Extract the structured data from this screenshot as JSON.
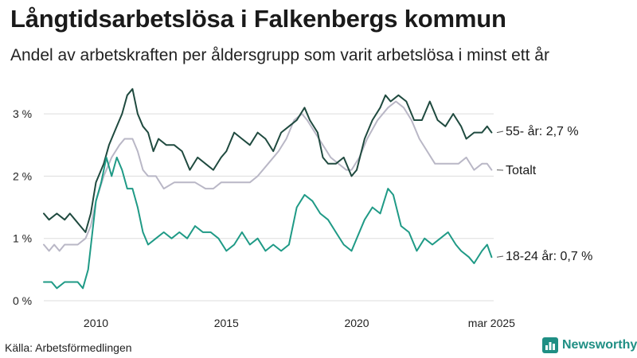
{
  "header": {
    "title": "Långtidsarbetslösa i Falkenbergs kommun",
    "subtitle": "Andel av arbetskraften per åldersgrupp som varit arbetslösa i minst ett år"
  },
  "footer": {
    "source": "Källa: Arbetsförmedlingen",
    "logo_text": "Newsworthy"
  },
  "colors": {
    "series_55": "#1f4a3f",
    "series_total": "#b9b7c6",
    "series_18_24": "#1f9a86",
    "grid": "#dddddd",
    "logo": "#1f8f84"
  },
  "chart_data": {
    "type": "line",
    "title": "",
    "xlabel": "",
    "ylabel": "",
    "x_start": "2008-01",
    "x_end": "2025-03",
    "xlim": [
      2008.0,
      2025.25
    ],
    "ylim": [
      0,
      3.5
    ],
    "grid": "horizontal",
    "yticks": [
      {
        "value": 0,
        "label": "0 %"
      },
      {
        "value": 1,
        "label": "1 %"
      },
      {
        "value": 2,
        "label": "2 %"
      },
      {
        "value": 3,
        "label": "3 %"
      }
    ],
    "xticks": [
      {
        "value": 2010.0,
        "label": "2010"
      },
      {
        "value": 2015.0,
        "label": "2015"
      },
      {
        "value": 2020.0,
        "label": "2020"
      },
      {
        "value": 2025.17,
        "label": "mar 2025"
      }
    ],
    "series": [
      {
        "key": "series_total",
        "label": "Totalt",
        "points": [
          [
            2008.0,
            0.9
          ],
          [
            2008.2,
            0.8
          ],
          [
            2008.4,
            0.9
          ],
          [
            2008.6,
            0.8
          ],
          [
            2008.8,
            0.9
          ],
          [
            2009.0,
            0.9
          ],
          [
            2009.3,
            0.9
          ],
          [
            2009.6,
            1.0
          ],
          [
            2009.8,
            1.2
          ],
          [
            2010.0,
            1.6
          ],
          [
            2010.3,
            2.0
          ],
          [
            2010.6,
            2.3
          ],
          [
            2010.9,
            2.5
          ],
          [
            2011.1,
            2.6
          ],
          [
            2011.4,
            2.6
          ],
          [
            2011.6,
            2.4
          ],
          [
            2011.8,
            2.1
          ],
          [
            2012.0,
            2.0
          ],
          [
            2012.3,
            2.0
          ],
          [
            2012.6,
            1.8
          ],
          [
            2013.0,
            1.9
          ],
          [
            2013.4,
            1.9
          ],
          [
            2013.8,
            1.9
          ],
          [
            2014.2,
            1.8
          ],
          [
            2014.5,
            1.8
          ],
          [
            2014.8,
            1.9
          ],
          [
            2015.1,
            1.9
          ],
          [
            2015.5,
            1.9
          ],
          [
            2015.9,
            1.9
          ],
          [
            2016.2,
            2.0
          ],
          [
            2016.6,
            2.2
          ],
          [
            2017.0,
            2.4
          ],
          [
            2017.3,
            2.6
          ],
          [
            2017.6,
            2.9
          ],
          [
            2017.9,
            3.0
          ],
          [
            2018.1,
            2.9
          ],
          [
            2018.4,
            2.7
          ],
          [
            2018.7,
            2.5
          ],
          [
            2019.0,
            2.3
          ],
          [
            2019.3,
            2.2
          ],
          [
            2019.6,
            2.1
          ],
          [
            2019.8,
            2.1
          ],
          [
            2020.1,
            2.3
          ],
          [
            2020.4,
            2.6
          ],
          [
            2020.8,
            2.9
          ],
          [
            2021.2,
            3.1
          ],
          [
            2021.5,
            3.2
          ],
          [
            2021.8,
            3.1
          ],
          [
            2022.1,
            2.9
          ],
          [
            2022.4,
            2.6
          ],
          [
            2022.7,
            2.4
          ],
          [
            2023.0,
            2.2
          ],
          [
            2023.3,
            2.2
          ],
          [
            2023.6,
            2.2
          ],
          [
            2023.9,
            2.2
          ],
          [
            2024.2,
            2.3
          ],
          [
            2024.5,
            2.1
          ],
          [
            2024.8,
            2.2
          ],
          [
            2025.0,
            2.2
          ],
          [
            2025.17,
            2.1
          ]
        ]
      },
      {
        "key": "series_55",
        "label": "55- år: 2,7 %",
        "points": [
          [
            2008.0,
            1.4
          ],
          [
            2008.2,
            1.3
          ],
          [
            2008.5,
            1.4
          ],
          [
            2008.8,
            1.3
          ],
          [
            2009.0,
            1.4
          ],
          [
            2009.2,
            1.3
          ],
          [
            2009.4,
            1.2
          ],
          [
            2009.6,
            1.1
          ],
          [
            2009.8,
            1.4
          ],
          [
            2010.0,
            1.9
          ],
          [
            2010.3,
            2.2
          ],
          [
            2010.5,
            2.5
          ],
          [
            2010.8,
            2.8
          ],
          [
            2011.0,
            3.0
          ],
          [
            2011.2,
            3.3
          ],
          [
            2011.4,
            3.4
          ],
          [
            2011.6,
            3.0
          ],
          [
            2011.8,
            2.8
          ],
          [
            2012.0,
            2.7
          ],
          [
            2012.2,
            2.4
          ],
          [
            2012.4,
            2.6
          ],
          [
            2012.7,
            2.5
          ],
          [
            2013.0,
            2.5
          ],
          [
            2013.3,
            2.4
          ],
          [
            2013.6,
            2.1
          ],
          [
            2013.9,
            2.3
          ],
          [
            2014.2,
            2.2
          ],
          [
            2014.5,
            2.1
          ],
          [
            2014.8,
            2.3
          ],
          [
            2015.0,
            2.4
          ],
          [
            2015.3,
            2.7
          ],
          [
            2015.6,
            2.6
          ],
          [
            2015.9,
            2.5
          ],
          [
            2016.2,
            2.7
          ],
          [
            2016.5,
            2.6
          ],
          [
            2016.8,
            2.4
          ],
          [
            2017.1,
            2.7
          ],
          [
            2017.4,
            2.8
          ],
          [
            2017.7,
            2.9
          ],
          [
            2018.0,
            3.1
          ],
          [
            2018.2,
            2.9
          ],
          [
            2018.5,
            2.7
          ],
          [
            2018.7,
            2.3
          ],
          [
            2018.9,
            2.2
          ],
          [
            2019.2,
            2.2
          ],
          [
            2019.5,
            2.3
          ],
          [
            2019.8,
            2.0
          ],
          [
            2020.0,
            2.1
          ],
          [
            2020.3,
            2.6
          ],
          [
            2020.6,
            2.9
          ],
          [
            2020.9,
            3.1
          ],
          [
            2021.1,
            3.3
          ],
          [
            2021.3,
            3.2
          ],
          [
            2021.6,
            3.3
          ],
          [
            2021.9,
            3.2
          ],
          [
            2022.2,
            2.9
          ],
          [
            2022.5,
            2.9
          ],
          [
            2022.8,
            3.2
          ],
          [
            2023.1,
            2.9
          ],
          [
            2023.4,
            2.8
          ],
          [
            2023.7,
            3.0
          ],
          [
            2024.0,
            2.8
          ],
          [
            2024.2,
            2.6
          ],
          [
            2024.5,
            2.7
          ],
          [
            2024.8,
            2.7
          ],
          [
            2025.0,
            2.8
          ],
          [
            2025.17,
            2.7
          ]
        ]
      },
      {
        "key": "series_18_24",
        "label": "18-24 år: 0,7 %",
        "points": [
          [
            2008.0,
            0.3
          ],
          [
            2008.3,
            0.3
          ],
          [
            2008.5,
            0.2
          ],
          [
            2008.8,
            0.3
          ],
          [
            2009.0,
            0.3
          ],
          [
            2009.3,
            0.3
          ],
          [
            2009.5,
            0.2
          ],
          [
            2009.7,
            0.5
          ],
          [
            2010.0,
            1.6
          ],
          [
            2010.2,
            1.9
          ],
          [
            2010.4,
            2.3
          ],
          [
            2010.6,
            2.0
          ],
          [
            2010.8,
            2.3
          ],
          [
            2011.0,
            2.1
          ],
          [
            2011.2,
            1.8
          ],
          [
            2011.4,
            1.8
          ],
          [
            2011.6,
            1.5
          ],
          [
            2011.8,
            1.1
          ],
          [
            2012.0,
            0.9
          ],
          [
            2012.3,
            1.0
          ],
          [
            2012.6,
            1.1
          ],
          [
            2012.9,
            1.0
          ],
          [
            2013.2,
            1.1
          ],
          [
            2013.5,
            1.0
          ],
          [
            2013.8,
            1.2
          ],
          [
            2014.1,
            1.1
          ],
          [
            2014.4,
            1.1
          ],
          [
            2014.7,
            1.0
          ],
          [
            2015.0,
            0.8
          ],
          [
            2015.3,
            0.9
          ],
          [
            2015.6,
            1.1
          ],
          [
            2015.9,
            0.9
          ],
          [
            2016.2,
            1.0
          ],
          [
            2016.5,
            0.8
          ],
          [
            2016.8,
            0.9
          ],
          [
            2017.1,
            0.8
          ],
          [
            2017.4,
            0.9
          ],
          [
            2017.7,
            1.5
          ],
          [
            2018.0,
            1.7
          ],
          [
            2018.3,
            1.6
          ],
          [
            2018.6,
            1.4
          ],
          [
            2018.9,
            1.3
          ],
          [
            2019.2,
            1.1
          ],
          [
            2019.5,
            0.9
          ],
          [
            2019.8,
            0.8
          ],
          [
            2020.0,
            1.0
          ],
          [
            2020.3,
            1.3
          ],
          [
            2020.6,
            1.5
          ],
          [
            2020.9,
            1.4
          ],
          [
            2021.2,
            1.8
          ],
          [
            2021.4,
            1.7
          ],
          [
            2021.7,
            1.2
          ],
          [
            2022.0,
            1.1
          ],
          [
            2022.3,
            0.8
          ],
          [
            2022.6,
            1.0
          ],
          [
            2022.9,
            0.9
          ],
          [
            2023.2,
            1.0
          ],
          [
            2023.5,
            1.1
          ],
          [
            2023.8,
            0.9
          ],
          [
            2024.0,
            0.8
          ],
          [
            2024.3,
            0.7
          ],
          [
            2024.5,
            0.6
          ],
          [
            2024.8,
            0.8
          ],
          [
            2025.0,
            0.9
          ],
          [
            2025.17,
            0.7
          ]
        ]
      }
    ]
  }
}
